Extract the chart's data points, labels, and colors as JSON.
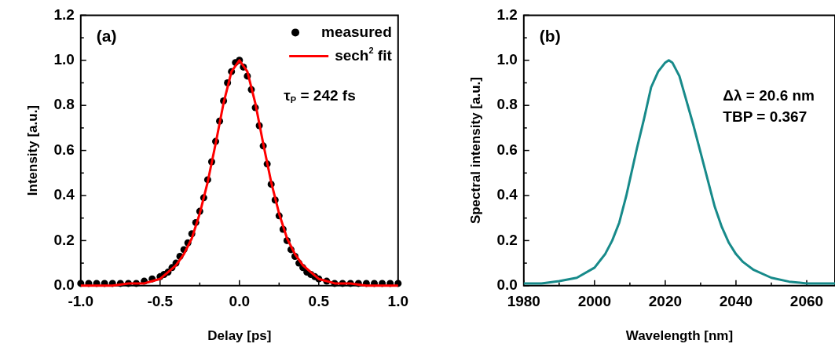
{
  "chart_data": [
    {
      "type": "scatter",
      "xlabel": "Delay [ps]",
      "ylabel": "Intensity [a.u.]",
      "xlim": [
        -1,
        1
      ],
      "ylim": [
        0,
        1.2
      ],
      "xticks": [
        {
          "value": -1,
          "label": "-1.0"
        },
        {
          "value": -0.75,
          "label": null
        },
        -0.5,
        {
          "value": -0.25,
          "label": null
        },
        {
          "value": 0,
          "label": "0.0"
        },
        {
          "value": 0.25,
          "label": null
        },
        0.5,
        {
          "value": 0.75,
          "label": null
        },
        {
          "value": 1,
          "label": "1.0"
        }
      ],
      "yticks": [
        {
          "value": 0,
          "label": "0.0"
        },
        {
          "value": 0.1,
          "label": null
        },
        0.2,
        {
          "value": 0.3,
          "label": null
        },
        0.4,
        {
          "value": 0.5,
          "label": null
        },
        0.6,
        {
          "value": 0.7,
          "label": null
        },
        0.8,
        {
          "value": 0.9,
          "label": null
        },
        {
          "value": 1,
          "label": "1.0"
        },
        {
          "value": 1.1,
          "label": null
        },
        1.2
      ],
      "legend": "top right",
      "grid": false,
      "annotations": [
        "(a)",
        "τ$_{P}$ = 242 fs"
      ],
      "series": [
        {
          "name": "measured",
          "marker": "circle",
          "color": "#000000",
          "x": [
            -1,
            -0.95,
            -0.9,
            -0.85,
            -0.8,
            -0.75,
            -0.7,
            -0.65,
            -0.6,
            -0.55,
            -0.5,
            -0.475,
            -0.45,
            -0.425,
            -0.4,
            -0.375,
            -0.35,
            -0.325,
            -0.3,
            -0.275,
            -0.25,
            -0.225,
            -0.2,
            -0.175,
            -0.15,
            -0.125,
            -0.1,
            -0.075,
            -0.05,
            -0.025,
            0,
            0.025,
            0.05,
            0.075,
            0.1,
            0.125,
            0.15,
            0.175,
            0.2,
            0.225,
            0.25,
            0.275,
            0.3,
            0.325,
            0.35,
            0.375,
            0.4,
            0.425,
            0.45,
            0.475,
            0.5,
            0.55,
            0.6,
            0.65,
            0.7,
            0.75,
            0.8,
            0.85,
            0.9,
            0.95,
            1
          ],
          "values": [
            0.01,
            0.01,
            0.01,
            0.01,
            0.01,
            0.01,
            0.01,
            0.01,
            0.02,
            0.03,
            0.04,
            0.05,
            0.06,
            0.08,
            0.1,
            0.13,
            0.16,
            0.19,
            0.23,
            0.28,
            0.33,
            0.39,
            0.47,
            0.55,
            0.64,
            0.73,
            0.82,
            0.9,
            0.95,
            0.99,
            1,
            0.97,
            0.93,
            0.87,
            0.79,
            0.71,
            0.62,
            0.54,
            0.45,
            0.38,
            0.31,
            0.25,
            0.2,
            0.16,
            0.13,
            0.1,
            0.08,
            0.06,
            0.05,
            0.04,
            0.03,
            0.02,
            0.01,
            0.01,
            0.01,
            0.01,
            0.01,
            0.01,
            0.01,
            0.01,
            0.01
          ]
        },
        {
          "name": "sech$^{2}$ fit",
          "type": "line",
          "marker": "none",
          "line_style": "solid",
          "color": "#ff0000",
          "x": [
            -1,
            -0.9,
            -0.8,
            -0.7,
            -0.6,
            -0.55,
            -0.5,
            -0.45,
            -0.4,
            -0.35,
            -0.3,
            -0.25,
            -0.2,
            -0.15,
            -0.1,
            -0.05,
            0,
            0.05,
            0.1,
            0.15,
            0.2,
            0.25,
            0.3,
            0.35,
            0.4,
            0.45,
            0.5,
            0.55,
            0.6,
            0.7,
            0.8,
            0.9,
            1
          ],
          "values": [
            0,
            0,
            0,
            0.01,
            0.01,
            0.02,
            0.03,
            0.06,
            0.09,
            0.14,
            0.21,
            0.32,
            0.46,
            0.63,
            0.81,
            0.95,
            1,
            0.95,
            0.81,
            0.63,
            0.46,
            0.32,
            0.21,
            0.14,
            0.09,
            0.06,
            0.03,
            0.02,
            0.01,
            0.01,
            0,
            0,
            0
          ]
        }
      ]
    },
    {
      "type": "line",
      "xlabel": "Wavelength [nm]",
      "ylabel": "Spectral intensity [a.u.]",
      "xlim": [
        1980,
        2068
      ],
      "ylim": [
        0,
        1.2
      ],
      "xticks": [
        1980,
        {
          "value": 1990,
          "label": null
        },
        2000,
        {
          "value": 2010,
          "label": null
        },
        2020,
        {
          "value": 2030,
          "label": null
        },
        2040,
        {
          "value": 2050,
          "label": null
        },
        2060
      ],
      "yticks": [
        {
          "value": 0,
          "label": "0.0"
        },
        {
          "value": 0.1,
          "label": null
        },
        0.2,
        {
          "value": 0.3,
          "label": null
        },
        0.4,
        {
          "value": 0.5,
          "label": null
        },
        0.6,
        {
          "value": 0.7,
          "label": null
        },
        0.8,
        {
          "value": 0.9,
          "label": null
        },
        {
          "value": 1,
          "label": "1.0"
        },
        {
          "value": 1.1,
          "label": null
        },
        1.2
      ],
      "grid": false,
      "annotations": [
        "(b)",
        "Δλ = 20.6 nm",
        "TBP = 0.367"
      ],
      "series": [
        {
          "marker": "none",
          "line_style": "solid",
          "color": "#178a8a",
          "x": [
            1980,
            1985,
            1990,
            1995,
            2000,
            2003,
            2005,
            2007,
            2009,
            2010,
            2012,
            2014,
            2016,
            2018,
            2020,
            2021,
            2022,
            2024,
            2026,
            2028,
            2030,
            2032,
            2034,
            2036,
            2038,
            2040,
            2042,
            2045,
            2050,
            2055,
            2060,
            2068
          ],
          "values": [
            0.01,
            0.01,
            0.02,
            0.035,
            0.08,
            0.14,
            0.2,
            0.28,
            0.4,
            0.47,
            0.61,
            0.74,
            0.88,
            0.95,
            0.99,
            1,
            0.99,
            0.93,
            0.82,
            0.71,
            0.59,
            0.47,
            0.35,
            0.26,
            0.19,
            0.14,
            0.105,
            0.07,
            0.035,
            0.018,
            0.01,
            0.01
          ]
        }
      ]
    }
  ]
}
